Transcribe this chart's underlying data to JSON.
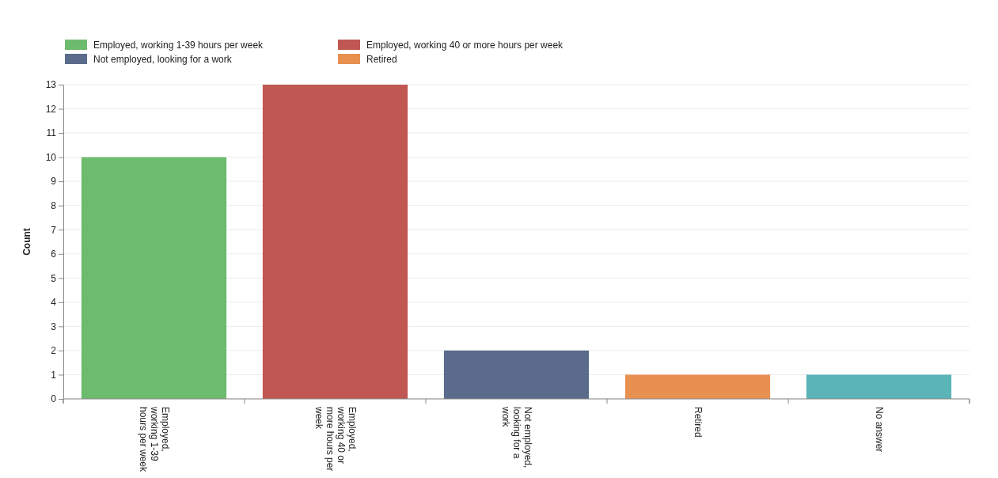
{
  "chart_data": {
    "type": "bar",
    "stacked": true,
    "ylabel": "Count",
    "categories": [
      "Employed, working 1-39 hours per week",
      "Employed, working 40 or more hours per week",
      "Not employed, looking for a work",
      "Retired",
      "No answer"
    ],
    "series": [
      {
        "name": "Employed, working 1-39 hours per week",
        "color": "#6dbb6d",
        "values": [
          10,
          null,
          null,
          null,
          null
        ]
      },
      {
        "name": "Employed, working 40 or more hours per week",
        "color": "#c05753",
        "values": [
          null,
          13,
          null,
          null,
          null
        ]
      },
      {
        "name": "Not employed, looking for a work",
        "color": "#5a6b8c",
        "values": [
          null,
          null,
          2,
          null,
          null
        ]
      },
      {
        "name": "Retired",
        "color": "#e8904f",
        "values": [
          null,
          null,
          null,
          1,
          null
        ]
      },
      {
        "color": "#5ab4b8",
        "values": [
          null,
          null,
          null,
          null,
          1
        ]
      }
    ],
    "ylim": [
      0,
      13
    ],
    "yticks": [
      0,
      1,
      2,
      3,
      4,
      5,
      6,
      7,
      8,
      9,
      10,
      11,
      12,
      13
    ],
    "grid": "y",
    "legend": "top left"
  }
}
